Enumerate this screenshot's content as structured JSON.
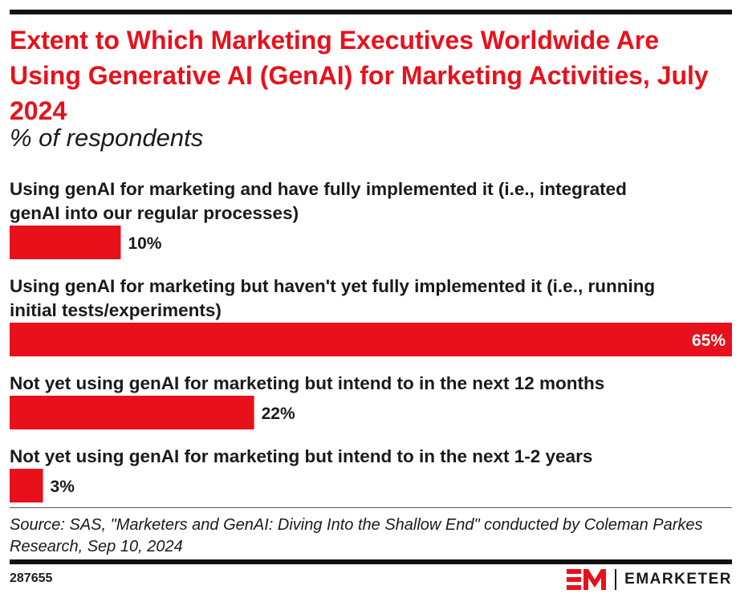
{
  "header": {
    "title": "Extent to Which Marketing Executives Worldwide Are Using Generative AI (GenAI) for Marketing Activities, July 2024",
    "subtitle": "% of respondents"
  },
  "chart_data": {
    "type": "bar",
    "orientation": "horizontal",
    "categories": [
      [
        "Using genAI for marketing and have fully implemented it (i.e., integrated",
        "genAI into our regular processes)"
      ],
      [
        "Using genAI for marketing but haven't yet fully implemented it (i.e., running",
        "initial tests/experiments)"
      ],
      [
        "Not yet using genAI for marketing but intend to in the next 12 months"
      ],
      [
        "Not yet using genAI for marketing but intend to in the next 1-2 years"
      ]
    ],
    "values": [
      10,
      65,
      22,
      3
    ],
    "value_labels": [
      "10%",
      "65%",
      "22%",
      "3%"
    ],
    "xlim": [
      0,
      65
    ],
    "bar_color": "#e8111b",
    "grid": false,
    "legend": "none"
  },
  "footer": {
    "source": "Source: SAS, \"Marketers and GenAI: Diving Into the Shallow End\" conducted by Coleman Parkes Research, Sep 10, 2024",
    "chart_id": "287655",
    "brand": "EMARKETER",
    "brand_color": "#e8111b"
  }
}
